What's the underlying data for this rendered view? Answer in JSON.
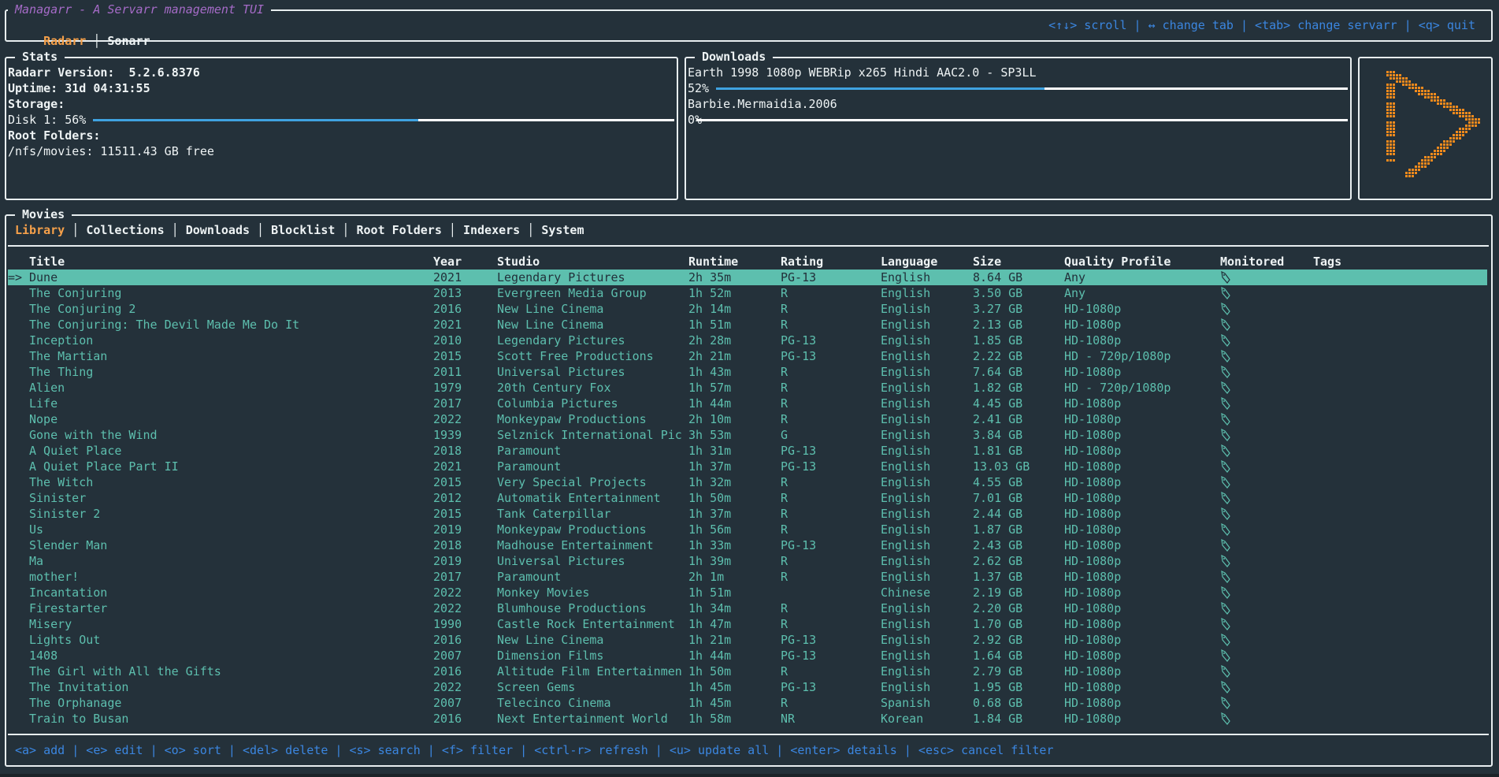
{
  "app": {
    "title": "Managarr - A Servarr management TUI",
    "servarr_tabs": [
      {
        "label": "Radarr",
        "active": true
      },
      {
        "label": "Sonarr",
        "active": false
      }
    ],
    "keybinds": "<↑↓> scroll | ↔ change tab | <tab> change servarr | <q> quit"
  },
  "stats": {
    "title": "Stats",
    "version_label": "Radarr Version:  5.2.6.8376",
    "uptime_label": "Uptime: 31d 04:31:55",
    "storage_label": "Storage:",
    "disk_label": "Disk 1: 56%",
    "disk_percent": 56,
    "root_folders_label": "Root Folders:",
    "root_folder": "/nfs/movies: 11511.43 GB free"
  },
  "downloads": {
    "title": "Downloads",
    "items": [
      {
        "name": "Earth 1998 1080p WEBRip x265 Hindi AAC2.0 - SP3LL",
        "percent_label": "52%",
        "percent": 52
      },
      {
        "name": "Barbie.Mermaidia.2006",
        "percent_label": "0%",
        "percent": 0
      }
    ]
  },
  "logo": {
    "icon": "radarr-logo",
    "color": "#f08a1c"
  },
  "movies": {
    "title": "Movies",
    "tabs": [
      {
        "label": "Library",
        "active": true
      },
      {
        "label": "Collections"
      },
      {
        "label": "Downloads"
      },
      {
        "label": "Blocklist"
      },
      {
        "label": "Root Folders"
      },
      {
        "label": "Indexers"
      },
      {
        "label": "System"
      }
    ],
    "columns": [
      "Title",
      "Year",
      "Studio",
      "Runtime",
      "Rating",
      "Language",
      "Size",
      "Quality Profile",
      "Monitored",
      "Tags"
    ],
    "selected_marker": "=>",
    "selected_index": 0,
    "rows": [
      [
        "Dune",
        "2021",
        "Legendary Pictures",
        "2h 35m",
        "PG-13",
        "English",
        "8.64 GB",
        "Any",
        true,
        ""
      ],
      [
        "The Conjuring",
        "2013",
        "Evergreen Media Group",
        "1h 52m",
        "R",
        "English",
        "3.50 GB",
        "Any",
        true,
        ""
      ],
      [
        "The Conjuring 2",
        "2016",
        "New Line Cinema",
        "2h 14m",
        "R",
        "English",
        "3.27 GB",
        "HD-1080p",
        true,
        ""
      ],
      [
        "The Conjuring: The Devil Made Me Do It",
        "2021",
        "New Line Cinema",
        "1h 51m",
        "R",
        "English",
        "2.13 GB",
        "HD-1080p",
        true,
        ""
      ],
      [
        "Inception",
        "2010",
        "Legendary Pictures",
        "2h 28m",
        "PG-13",
        "English",
        "1.85 GB",
        "HD-1080p",
        true,
        ""
      ],
      [
        "The Martian",
        "2015",
        "Scott Free Productions",
        "2h 21m",
        "PG-13",
        "English",
        "2.22 GB",
        "HD - 720p/1080p",
        true,
        ""
      ],
      [
        "The Thing",
        "2011",
        "Universal Pictures",
        "1h 43m",
        "R",
        "English",
        "7.64 GB",
        "HD-1080p",
        true,
        ""
      ],
      [
        "Alien",
        "1979",
        "20th Century Fox",
        "1h 57m",
        "R",
        "English",
        "1.82 GB",
        "HD - 720p/1080p",
        true,
        ""
      ],
      [
        "Life",
        "2017",
        "Columbia Pictures",
        "1h 44m",
        "R",
        "English",
        "4.45 GB",
        "HD-1080p",
        true,
        ""
      ],
      [
        "Nope",
        "2022",
        "Monkeypaw Productions",
        "2h 10m",
        "R",
        "English",
        "2.41 GB",
        "HD-1080p",
        true,
        ""
      ],
      [
        "Gone with the Wind",
        "1939",
        "Selznick International Pic",
        "3h 53m",
        "G",
        "English",
        "3.84 GB",
        "HD-1080p",
        true,
        ""
      ],
      [
        "A Quiet Place",
        "2018",
        "Paramount",
        "1h 31m",
        "PG-13",
        "English",
        "1.81 GB",
        "HD-1080p",
        true,
        ""
      ],
      [
        "A Quiet Place Part II",
        "2021",
        "Paramount",
        "1h 37m",
        "PG-13",
        "English",
        "13.03 GB",
        "HD-1080p",
        true,
        ""
      ],
      [
        "The Witch",
        "2015",
        "Very Special Projects",
        "1h 32m",
        "R",
        "English",
        "4.55 GB",
        "HD-1080p",
        true,
        ""
      ],
      [
        "Sinister",
        "2012",
        "Automatik Entertainment",
        "1h 50m",
        "R",
        "English",
        "7.01 GB",
        "HD-1080p",
        true,
        ""
      ],
      [
        "Sinister 2",
        "2015",
        "Tank Caterpillar",
        "1h 37m",
        "R",
        "English",
        "2.44 GB",
        "HD-1080p",
        true,
        ""
      ],
      [
        "Us",
        "2019",
        "Monkeypaw Productions",
        "1h 56m",
        "R",
        "English",
        "1.87 GB",
        "HD-1080p",
        true,
        ""
      ],
      [
        "Slender Man",
        "2018",
        "Madhouse Entertainment",
        "1h 33m",
        "PG-13",
        "English",
        "2.43 GB",
        "HD-1080p",
        true,
        ""
      ],
      [
        "Ma",
        "2019",
        "Universal Pictures",
        "1h 39m",
        "R",
        "English",
        "2.62 GB",
        "HD-1080p",
        true,
        ""
      ],
      [
        "mother!",
        "2017",
        "Paramount",
        "2h 1m",
        "R",
        "English",
        "1.37 GB",
        "HD-1080p",
        true,
        ""
      ],
      [
        "Incantation",
        "2022",
        "Monkey Movies",
        "1h 51m",
        "",
        "Chinese",
        "2.19 GB",
        "HD-1080p",
        true,
        ""
      ],
      [
        "Firestarter",
        "2022",
        "Blumhouse Productions",
        "1h 34m",
        "R",
        "English",
        "2.20 GB",
        "HD-1080p",
        true,
        ""
      ],
      [
        "Misery",
        "1990",
        "Castle Rock Entertainment",
        "1h 47m",
        "R",
        "English",
        "1.70 GB",
        "HD-1080p",
        true,
        ""
      ],
      [
        "Lights Out",
        "2016",
        "New Line Cinema",
        "1h 21m",
        "PG-13",
        "English",
        "2.92 GB",
        "HD-1080p",
        true,
        ""
      ],
      [
        "1408",
        "2007",
        "Dimension Films",
        "1h 44m",
        "PG-13",
        "English",
        "1.64 GB",
        "HD-1080p",
        true,
        ""
      ],
      [
        "The Girl with All the Gifts",
        "2016",
        "Altitude Film Entertainmen",
        "1h 50m",
        "R",
        "English",
        "2.79 GB",
        "HD-1080p",
        true,
        ""
      ],
      [
        "The Invitation",
        "2022",
        "Screen Gems",
        "1h 45m",
        "PG-13",
        "English",
        "1.95 GB",
        "HD-1080p",
        true,
        ""
      ],
      [
        "The Orphanage",
        "2007",
        "Telecinco Cinema",
        "1h 45m",
        "R",
        "Spanish",
        "0.68 GB",
        "HD-1080p",
        true,
        ""
      ],
      [
        "Train to Busan",
        "2016",
        "Next Entertainment World",
        "1h 58m",
        "NR",
        "Korean",
        "1.84 GB",
        "HD-1080p",
        true,
        ""
      ]
    ],
    "footer_keybinds": "<a> add | <e> edit | <o> sort | <del> delete | <s> search | <f> filter | <ctrl-r> refresh | <u> update all | <enter> details | <esc> cancel filter"
  },
  "colors": {
    "background": "#24313a",
    "accent": "#f5a04a",
    "row_text": "#5dbfae",
    "title": "#a56bc7",
    "progress": "#3fa2e0",
    "keybinds": "#3b86e0"
  }
}
